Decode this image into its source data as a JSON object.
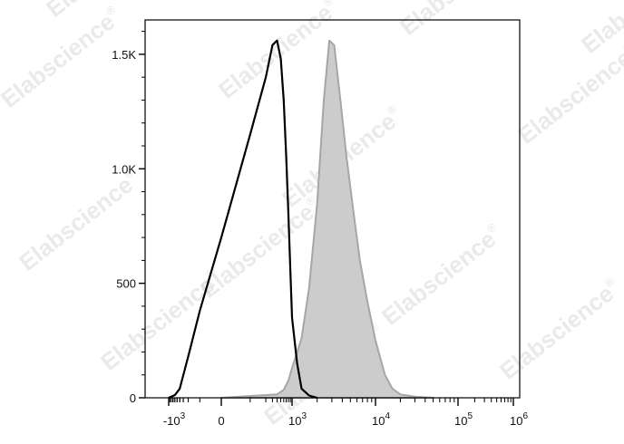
{
  "watermark": {
    "text": "Elabscience",
    "mark": "®"
  },
  "chart_data": {
    "type": "area",
    "title": "",
    "xlabel": "",
    "ylabel": "",
    "x_scale": "biexponential",
    "xlim": [
      -1500,
      1000000
    ],
    "ylim": [
      0,
      1650
    ],
    "grid": false,
    "legend": "none",
    "y_ticks": [
      {
        "value": 0,
        "label": "0"
      },
      {
        "value": 500,
        "label": "500"
      },
      {
        "value": 1000,
        "label": "1.0K"
      },
      {
        "value": 1500,
        "label": "1.5K"
      }
    ],
    "x_ticks": [
      {
        "value": -1000,
        "base": "-10",
        "exp": "3"
      },
      {
        "value": 0,
        "base": "0",
        "exp": ""
      },
      {
        "value": 1000,
        "base": "10",
        "exp": "3"
      },
      {
        "value": 10000,
        "base": "10",
        "exp": "4"
      },
      {
        "value": 100000,
        "base": "10",
        "exp": "5"
      },
      {
        "value": 1000000,
        "base": "10",
        "exp": "6"
      }
    ],
    "series": [
      {
        "style": "outline",
        "color": "#000000",
        "x": [
          -1000,
          -600,
          -400,
          -200,
          -100,
          0,
          100,
          200,
          300,
          400,
          500,
          600,
          700,
          800,
          900,
          1000,
          1150,
          1300,
          1600,
          2000
        ],
        "y": [
          0,
          12,
          40,
          180,
          380,
          700,
          1150,
          1400,
          1540,
          1560,
          1480,
          1300,
          1050,
          800,
          560,
          350,
          150,
          40,
          10,
          0
        ]
      },
      {
        "style": "filled",
        "color": "#a6a6a6",
        "fill": "#cccccc",
        "x": [
          0,
          400,
          600,
          800,
          1000,
          1300,
          1600,
          2000,
          2400,
          2800,
          3200,
          3800,
          4500,
          5500,
          6500,
          8000,
          10000,
          13000,
          16000,
          20000,
          30000,
          50000
        ],
        "y": [
          0,
          15,
          35,
          75,
          130,
          260,
          480,
          850,
          1300,
          1560,
          1540,
          1300,
          1050,
          800,
          600,
          420,
          250,
          100,
          40,
          15,
          5,
          0
        ]
      }
    ]
  }
}
